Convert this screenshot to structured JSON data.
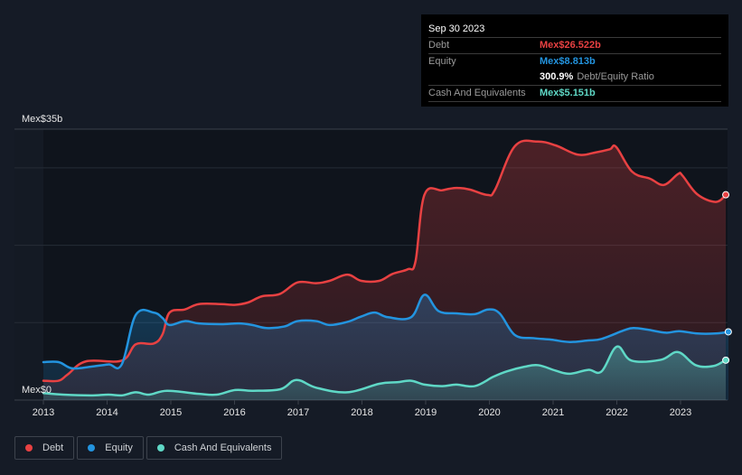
{
  "colors": {
    "debt": "#e84142",
    "equity": "#2394df",
    "cash": "#5fd8c6",
    "background": "#151b26",
    "plot_background": "#0f141c",
    "grid": "#2c323c"
  },
  "tooltip": {
    "date": "Sep 30 2023",
    "rows": [
      {
        "label": "Debt",
        "value": "Mex$26.522b",
        "color": "#e84142"
      },
      {
        "label": "Equity",
        "value": "Mex$8.813b",
        "color": "#2394df"
      },
      {
        "ratio_value": "300.9%",
        "ratio_label": "Debt/Equity Ratio"
      },
      {
        "label": "Cash And Equivalents",
        "value": "Mex$5.151b",
        "color": "#5fd8c6"
      }
    ]
  },
  "legend": [
    {
      "label": "Debt",
      "color": "#e84142"
    },
    {
      "label": "Equity",
      "color": "#2394df"
    },
    {
      "label": "Cash And Equivalents",
      "color": "#5fd8c6"
    }
  ],
  "chart_data": {
    "type": "area",
    "title": "",
    "xlabel": "",
    "ylabel": "",
    "y_top_label": "Mex$35b",
    "y_bottom_label": "Mex$0",
    "ylim": [
      0,
      35
    ],
    "xlim": [
      2013.0,
      2023.75
    ],
    "grid_y": [
      10,
      20,
      30,
      35
    ],
    "x_ticks": [
      2013,
      2014,
      2015,
      2016,
      2017,
      2018,
      2019,
      2020,
      2021,
      2022,
      2023
    ],
    "x_tick_labels": [
      "2013",
      "2014",
      "2015",
      "2016",
      "2017",
      "2018",
      "2019",
      "2020",
      "2021",
      "2022",
      "2023"
    ],
    "legend_position": "bottom-left",
    "series": [
      {
        "name": "Debt",
        "color": "#e84142",
        "points": [
          [
            2013.0,
            2.5
          ],
          [
            2013.24,
            2.5
          ],
          [
            2013.38,
            3.3
          ],
          [
            2013.67,
            5.0
          ],
          [
            2014.23,
            5.1
          ],
          [
            2014.45,
            7.2
          ],
          [
            2014.73,
            7.3
          ],
          [
            2014.87,
            8.5
          ],
          [
            2014.98,
            11.3
          ],
          [
            2015.22,
            11.7
          ],
          [
            2015.44,
            12.4
          ],
          [
            2015.79,
            12.4
          ],
          [
            2016.0,
            12.3
          ],
          [
            2016.21,
            12.6
          ],
          [
            2016.43,
            13.4
          ],
          [
            2016.71,
            13.7
          ],
          [
            2016.99,
            15.2
          ],
          [
            2017.28,
            15.1
          ],
          [
            2017.49,
            15.4
          ],
          [
            2017.77,
            16.2
          ],
          [
            2017.99,
            15.4
          ],
          [
            2018.27,
            15.4
          ],
          [
            2018.48,
            16.3
          ],
          [
            2018.72,
            16.9
          ],
          [
            2018.84,
            17.9
          ],
          [
            2018.98,
            26.5
          ],
          [
            2019.26,
            27.1
          ],
          [
            2019.48,
            27.4
          ],
          [
            2019.69,
            27.2
          ],
          [
            2019.97,
            26.5
          ],
          [
            2020.09,
            27.2
          ],
          [
            2020.4,
            32.8
          ],
          [
            2020.75,
            33.4
          ],
          [
            2021.04,
            32.9
          ],
          [
            2021.39,
            31.7
          ],
          [
            2021.67,
            32.0
          ],
          [
            2021.89,
            32.4
          ],
          [
            2021.99,
            32.7
          ],
          [
            2022.24,
            29.5
          ],
          [
            2022.52,
            28.6
          ],
          [
            2022.74,
            27.8
          ],
          [
            2022.96,
            29.2
          ],
          [
            2023.03,
            29.0
          ],
          [
            2023.26,
            26.6
          ],
          [
            2023.55,
            25.6
          ],
          [
            2023.71,
            26.5
          ]
        ]
      },
      {
        "name": "Equity",
        "color": "#2394df",
        "points": [
          [
            2013.0,
            4.9
          ],
          [
            2013.24,
            4.9
          ],
          [
            2013.45,
            4.1
          ],
          [
            2013.74,
            4.3
          ],
          [
            2014.02,
            4.6
          ],
          [
            2014.23,
            4.6
          ],
          [
            2014.45,
            11.0
          ],
          [
            2014.73,
            11.3
          ],
          [
            2014.87,
            10.6
          ],
          [
            2014.98,
            9.7
          ],
          [
            2015.22,
            10.2
          ],
          [
            2015.44,
            9.9
          ],
          [
            2015.79,
            9.8
          ],
          [
            2016.07,
            9.9
          ],
          [
            2016.28,
            9.7
          ],
          [
            2016.5,
            9.3
          ],
          [
            2016.78,
            9.5
          ],
          [
            2016.99,
            10.2
          ],
          [
            2017.28,
            10.2
          ],
          [
            2017.49,
            9.7
          ],
          [
            2017.77,
            10.1
          ],
          [
            2017.99,
            10.8
          ],
          [
            2018.2,
            11.3
          ],
          [
            2018.41,
            10.7
          ],
          [
            2018.77,
            10.7
          ],
          [
            2018.98,
            13.6
          ],
          [
            2019.2,
            11.5
          ],
          [
            2019.48,
            11.2
          ],
          [
            2019.77,
            11.1
          ],
          [
            2019.98,
            11.7
          ],
          [
            2020.16,
            11.2
          ],
          [
            2020.4,
            8.4
          ],
          [
            2020.69,
            8.0
          ],
          [
            2020.97,
            7.8
          ],
          [
            2021.26,
            7.5
          ],
          [
            2021.55,
            7.7
          ],
          [
            2021.76,
            7.9
          ],
          [
            2022.11,
            9.0
          ],
          [
            2022.26,
            9.3
          ],
          [
            2022.48,
            9.1
          ],
          [
            2022.77,
            8.7
          ],
          [
            2022.98,
            8.9
          ],
          [
            2023.26,
            8.6
          ],
          [
            2023.55,
            8.6
          ],
          [
            2023.75,
            8.8
          ]
        ]
      },
      {
        "name": "Cash And Equivalents",
        "color": "#5fd8c6",
        "points": [
          [
            2013.0,
            0.9
          ],
          [
            2013.31,
            0.7
          ],
          [
            2013.74,
            0.6
          ],
          [
            2014.02,
            0.7
          ],
          [
            2014.23,
            0.6
          ],
          [
            2014.45,
            1.0
          ],
          [
            2014.66,
            0.7
          ],
          [
            2014.94,
            1.2
          ],
          [
            2015.44,
            0.8
          ],
          [
            2015.72,
            0.7
          ],
          [
            2016.01,
            1.3
          ],
          [
            2016.29,
            1.2
          ],
          [
            2016.72,
            1.4
          ],
          [
            2016.97,
            2.6
          ],
          [
            2017.28,
            1.6
          ],
          [
            2017.77,
            1.0
          ],
          [
            2018.27,
            2.1
          ],
          [
            2018.55,
            2.3
          ],
          [
            2018.77,
            2.5
          ],
          [
            2018.98,
            2.0
          ],
          [
            2019.26,
            1.8
          ],
          [
            2019.48,
            2.0
          ],
          [
            2019.77,
            1.8
          ],
          [
            2020.06,
            3.0
          ],
          [
            2020.27,
            3.7
          ],
          [
            2020.55,
            4.3
          ],
          [
            2020.77,
            4.5
          ],
          [
            2021.04,
            3.8
          ],
          [
            2021.26,
            3.4
          ],
          [
            2021.55,
            3.9
          ],
          [
            2021.76,
            3.7
          ],
          [
            2022.0,
            6.9
          ],
          [
            2022.23,
            5.1
          ],
          [
            2022.69,
            5.2
          ],
          [
            2022.96,
            6.2
          ],
          [
            2023.24,
            4.5
          ],
          [
            2023.52,
            4.4
          ],
          [
            2023.71,
            5.2
          ]
        ]
      }
    ],
    "last_point_markers": [
      {
        "series": "Debt",
        "value": 26.522
      },
      {
        "series": "Equity",
        "value": 8.813
      },
      {
        "series": "Cash And Equivalents",
        "value": 5.151
      }
    ]
  }
}
